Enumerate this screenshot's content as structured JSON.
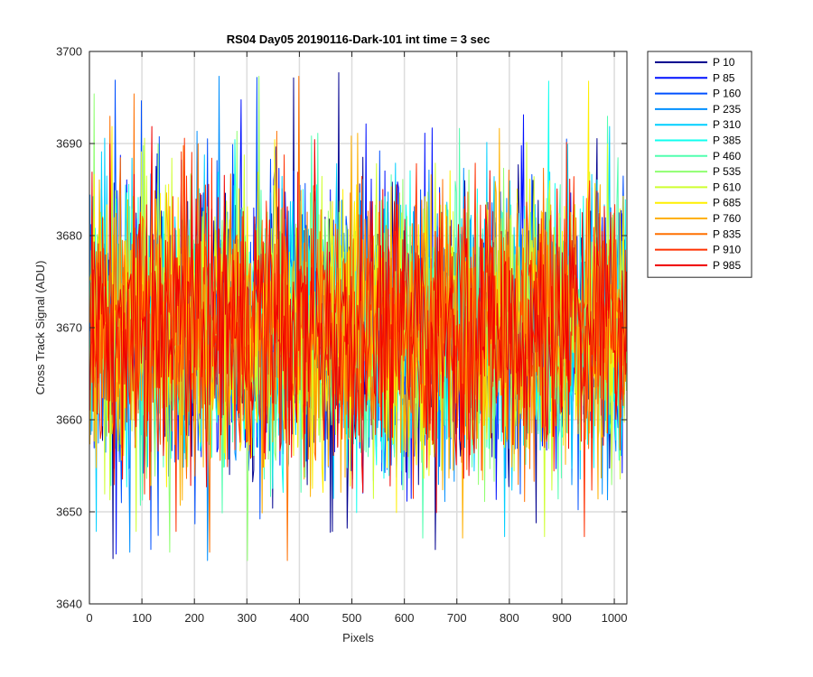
{
  "chart_data": {
    "type": "line",
    "title": "RS04 Day05 20190116-Dark-101 int time = 3 sec",
    "xlabel": "Pixels",
    "ylabel": "Cross Track Signal (ADU)",
    "xlim": [
      0,
      1024
    ],
    "ylim": [
      3640,
      3700
    ],
    "xticks": [
      0,
      100,
      200,
      300,
      400,
      500,
      600,
      700,
      800,
      900,
      1000
    ],
    "yticks": [
      3640,
      3650,
      3660,
      3670,
      3680,
      3690,
      3700
    ],
    "grid": true,
    "legend_location": "outside-top-right",
    "noise_mean_approx": 3670,
    "noise_range_approx": [
      3641,
      3698
    ],
    "series": [
      {
        "name": "P 10",
        "color": "#00008F"
      },
      {
        "name": "P 85",
        "color": "#0010FF"
      },
      {
        "name": "P 160",
        "color": "#0050FF"
      },
      {
        "name": "P 235",
        "color": "#008FFF"
      },
      {
        "name": "P 310",
        "color": "#00CFFF"
      },
      {
        "name": "P 385",
        "color": "#10FFEF"
      },
      {
        "name": "P 460",
        "color": "#50FFAF"
      },
      {
        "name": "P 535",
        "color": "#8FFF70"
      },
      {
        "name": "P 610",
        "color": "#CFFF30"
      },
      {
        "name": "P 685",
        "color": "#FFEF00"
      },
      {
        "name": "P 760",
        "color": "#FFB000"
      },
      {
        "name": "P 835",
        "color": "#FF7000"
      },
      {
        "name": "P 910",
        "color": "#FF3000"
      },
      {
        "name": "P 985",
        "color": "#EF0000"
      }
    ]
  }
}
